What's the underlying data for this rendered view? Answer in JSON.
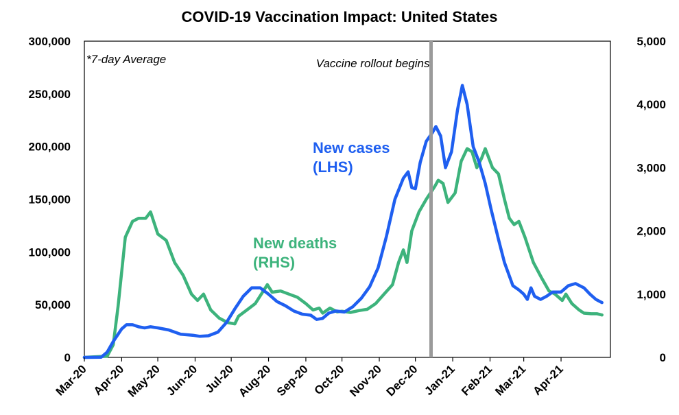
{
  "chart_data": {
    "type": "line",
    "title": "COVID-19 Vaccination Impact: United States",
    "note": "*7-day Average",
    "annotation": {
      "text": "Vaccine rollout begins",
      "x": "2020-12-14"
    },
    "x_ticks": [
      "Mar-20",
      "Apr-20",
      "May-20",
      "Jun-20",
      "Jul-20",
      "Aug-20",
      "Sep-20",
      "Oct-20",
      "Nov-20",
      "Dec-20",
      "Jan-21",
      "Feb-21",
      "Mar-21",
      "Apr-21"
    ],
    "x_range": [
      "2020-03-01",
      "2021-05-12"
    ],
    "y_left": {
      "ylim": [
        0,
        300000
      ],
      "ticks": [
        "0",
        "50,000",
        "100,000",
        "150,000",
        "200,000",
        "250,000",
        "300,000"
      ]
    },
    "y_right": {
      "ylim": [
        0,
        5000
      ],
      "ticks": [
        "0",
        "1,000",
        "2,000",
        "3,000",
        "4,000",
        "5,000"
      ]
    },
    "grid": false,
    "series": [
      {
        "name": "New cases (LHS)",
        "label_lines": [
          "New cases",
          "(LHS)"
        ],
        "axis": "left",
        "color": "#1f5ff0",
        "points": [
          [
            "2020-03-01",
            0
          ],
          [
            "2020-03-15",
            200
          ],
          [
            "2020-03-20",
            5000
          ],
          [
            "2020-03-25",
            15000
          ],
          [
            "2020-04-01",
            27000
          ],
          [
            "2020-04-05",
            31000
          ],
          [
            "2020-04-10",
            31000
          ],
          [
            "2020-04-15",
            29000
          ],
          [
            "2020-04-20",
            28000
          ],
          [
            "2020-04-25",
            29000
          ],
          [
            "2020-05-01",
            28000
          ],
          [
            "2020-05-10",
            26000
          ],
          [
            "2020-05-20",
            22000
          ],
          [
            "2020-05-30",
            21000
          ],
          [
            "2020-06-05",
            20000
          ],
          [
            "2020-06-12",
            20500
          ],
          [
            "2020-06-20",
            24000
          ],
          [
            "2020-06-27",
            33000
          ],
          [
            "2020-07-04",
            46000
          ],
          [
            "2020-07-11",
            58000
          ],
          [
            "2020-07-18",
            66000
          ],
          [
            "2020-07-25",
            66000
          ],
          [
            "2020-08-01",
            60000
          ],
          [
            "2020-08-08",
            53000
          ],
          [
            "2020-08-15",
            49000
          ],
          [
            "2020-08-22",
            44000
          ],
          [
            "2020-08-29",
            41000
          ],
          [
            "2020-09-05",
            40000
          ],
          [
            "2020-09-10",
            36000
          ],
          [
            "2020-09-15",
            37000
          ],
          [
            "2020-09-20",
            42000
          ],
          [
            "2020-09-26",
            44000
          ],
          [
            "2020-10-03",
            43000
          ],
          [
            "2020-10-10",
            48000
          ],
          [
            "2020-10-17",
            56000
          ],
          [
            "2020-10-24",
            67000
          ],
          [
            "2020-10-31",
            85000
          ],
          [
            "2020-11-07",
            115000
          ],
          [
            "2020-11-14",
            150000
          ],
          [
            "2020-11-21",
            170000
          ],
          [
            "2020-11-25",
            176000
          ],
          [
            "2020-11-28",
            161000
          ],
          [
            "2020-12-01",
            160000
          ],
          [
            "2020-12-05",
            185000
          ],
          [
            "2020-12-10",
            205000
          ],
          [
            "2020-12-15",
            213000
          ],
          [
            "2020-12-18",
            219000
          ],
          [
            "2020-12-22",
            210000
          ],
          [
            "2020-12-26",
            180000
          ],
          [
            "2020-12-31",
            195000
          ],
          [
            "2021-01-05",
            235000
          ],
          [
            "2021-01-09",
            258000
          ],
          [
            "2021-01-13",
            240000
          ],
          [
            "2021-01-18",
            200000
          ],
          [
            "2021-01-23",
            185000
          ],
          [
            "2021-01-28",
            165000
          ],
          [
            "2021-02-02",
            140000
          ],
          [
            "2021-02-08",
            112000
          ],
          [
            "2021-02-13",
            90000
          ],
          [
            "2021-02-20",
            68000
          ],
          [
            "2021-02-25",
            64000
          ],
          [
            "2021-03-01",
            60000
          ],
          [
            "2021-03-04",
            55000
          ],
          [
            "2021-03-07",
            66000
          ],
          [
            "2021-03-10",
            58000
          ],
          [
            "2021-03-15",
            55000
          ],
          [
            "2021-03-20",
            58000
          ],
          [
            "2021-03-25",
            62000
          ],
          [
            "2021-04-01",
            62000
          ],
          [
            "2021-04-07",
            68000
          ],
          [
            "2021-04-13",
            70000
          ],
          [
            "2021-04-20",
            66000
          ],
          [
            "2021-04-25",
            60000
          ],
          [
            "2021-04-30",
            55000
          ],
          [
            "2021-05-05",
            52000
          ]
        ]
      },
      {
        "name": "New deaths (RHS)",
        "label_lines": [
          "New deaths",
          "(RHS)"
        ],
        "axis": "right",
        "color": "#3db37c",
        "points": [
          [
            "2020-03-01",
            0
          ],
          [
            "2020-03-20",
            20
          ],
          [
            "2020-03-25",
            200
          ],
          [
            "2020-03-29",
            800
          ],
          [
            "2020-04-04",
            1900
          ],
          [
            "2020-04-10",
            2150
          ],
          [
            "2020-04-15",
            2200
          ],
          [
            "2020-04-21",
            2200
          ],
          [
            "2020-04-25",
            2300
          ],
          [
            "2020-05-01",
            1950
          ],
          [
            "2020-05-08",
            1850
          ],
          [
            "2020-05-15",
            1500
          ],
          [
            "2020-05-22",
            1300
          ],
          [
            "2020-05-29",
            1000
          ],
          [
            "2020-06-03",
            900
          ],
          [
            "2020-06-08",
            1000
          ],
          [
            "2020-06-14",
            750
          ],
          [
            "2020-06-21",
            620
          ],
          [
            "2020-06-28",
            550
          ],
          [
            "2020-07-04",
            530
          ],
          [
            "2020-07-07",
            650
          ],
          [
            "2020-07-14",
            750
          ],
          [
            "2020-07-21",
            850
          ],
          [
            "2020-07-26",
            1000
          ],
          [
            "2020-07-31",
            1150
          ],
          [
            "2020-08-04",
            1030
          ],
          [
            "2020-08-11",
            1050
          ],
          [
            "2020-08-18",
            1000
          ],
          [
            "2020-08-25",
            950
          ],
          [
            "2020-09-01",
            850
          ],
          [
            "2020-09-07",
            750
          ],
          [
            "2020-09-12",
            780
          ],
          [
            "2020-09-15",
            700
          ],
          [
            "2020-09-21",
            780
          ],
          [
            "2020-09-27",
            720
          ],
          [
            "2020-10-01",
            730
          ],
          [
            "2020-10-08",
            710
          ],
          [
            "2020-10-15",
            740
          ],
          [
            "2020-10-22",
            760
          ],
          [
            "2020-10-29",
            850
          ],
          [
            "2020-11-05",
            1000
          ],
          [
            "2020-11-12",
            1150
          ],
          [
            "2020-11-17",
            1500
          ],
          [
            "2020-11-21",
            1700
          ],
          [
            "2020-11-24",
            1500
          ],
          [
            "2020-11-28",
            2000
          ],
          [
            "2020-12-04",
            2300
          ],
          [
            "2020-12-10",
            2500
          ],
          [
            "2020-12-17",
            2700
          ],
          [
            "2020-12-20",
            2800
          ],
          [
            "2020-12-24",
            2750
          ],
          [
            "2020-12-28",
            2450
          ],
          [
            "2021-01-03",
            2600
          ],
          [
            "2021-01-08",
            3100
          ],
          [
            "2021-01-13",
            3300
          ],
          [
            "2021-01-17",
            3250
          ],
          [
            "2021-01-21",
            3000
          ],
          [
            "2021-01-25",
            3150
          ],
          [
            "2021-01-28",
            3300
          ],
          [
            "2021-02-03",
            3000
          ],
          [
            "2021-02-08",
            2900
          ],
          [
            "2021-02-13",
            2500
          ],
          [
            "2021-02-17",
            2200
          ],
          [
            "2021-02-21",
            2100
          ],
          [
            "2021-02-25",
            2150
          ],
          [
            "2021-03-02",
            1900
          ],
          [
            "2021-03-09",
            1500
          ],
          [
            "2021-03-16",
            1250
          ],
          [
            "2021-03-22",
            1050
          ],
          [
            "2021-03-27",
            1000
          ],
          [
            "2021-04-02",
            900
          ],
          [
            "2021-04-05",
            1000
          ],
          [
            "2021-04-10",
            850
          ],
          [
            "2021-04-16",
            750
          ],
          [
            "2021-04-20",
            700
          ],
          [
            "2021-04-26",
            690
          ],
          [
            "2021-05-01",
            690
          ],
          [
            "2021-05-05",
            670
          ]
        ]
      }
    ]
  }
}
